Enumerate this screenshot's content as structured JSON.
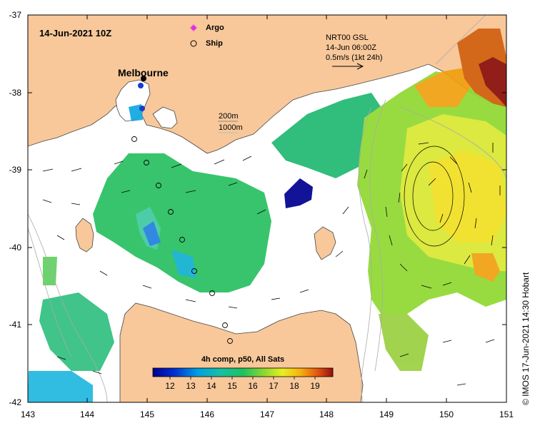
{
  "map": {
    "datetime": "14-Jun-2021 10Z",
    "city": "Melbourne",
    "legend": {
      "argo": "Argo",
      "ship": "Ship"
    },
    "depth": {
      "line1": "200m",
      "line2": "1000m"
    },
    "current_ref": {
      "line1": "NRT00 GSL",
      "line2": "14-Jun 06:00Z",
      "line3": "0.5m/s (1kt 24h)"
    },
    "colorbar": {
      "title": "4h comp, p50, All Sats",
      "ticks": [
        "12",
        "13",
        "14",
        "15",
        "16",
        "17",
        "18",
        "19"
      ]
    },
    "credit": "©  IMOS 17-Jun-2021 14:30 Hobart",
    "x_ticks": [
      "143",
      "144",
      "145",
      "146",
      "147",
      "148",
      "149",
      "150",
      "151"
    ],
    "y_ticks": [
      "-37",
      "-38",
      "-39",
      "-40",
      "-41",
      "-42"
    ],
    "colors": {
      "land": "#f8c89a",
      "sea": "#ffffff"
    }
  }
}
